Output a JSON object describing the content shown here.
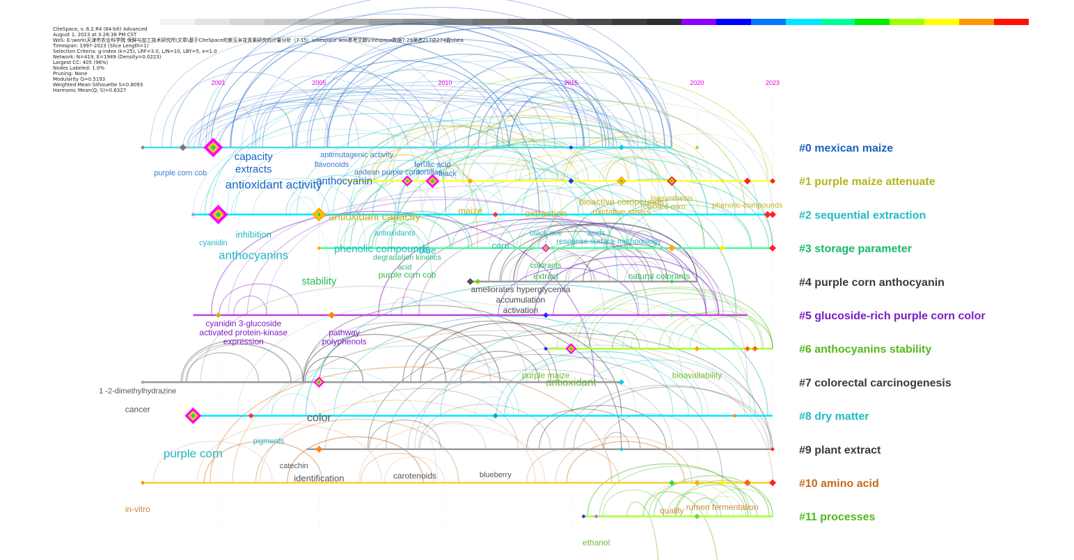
{
  "header_info": [
    "CiteSpace, v. 6.2.R4 (64-bit) Advanced",
    "August 1, 2023 at 3:26:38 PM CST",
    "WoS: E:\\work\\天津市农业科学院 保鲜与加工技术研究所\\文章\\基于CiteSpace的紫玉米花青素研究的计量分析（7.15）\\citespace wos参考文献\\citespace数据7.29筛选217总274篇\\data",
    "Timespan: 1997-2023 (Slice Length=1)",
    "Selection Criteria: g-index (k=25), LRF=3.0, L/N=10, LBY=5, e=1.0",
    "Network: N=419, E=1949 (Density=0.0223)",
    "Largest CC: 405 (96%)",
    "Nodes Labeled: 1.0%",
    "Pruning: None",
    "Modularity Q=0.5193",
    "Weighted Mean Silhouette S=0.8093",
    "Harmonic Mean(Q, S)=0.6327"
  ],
  "colorbar": [
    "#f2f2f2",
    "#e4e4e4",
    "#d6d6d6",
    "#c8c8c8",
    "#bababa",
    "#acacac",
    "#9e9e9e",
    "#909090",
    "#828282",
    "#747474",
    "#666666",
    "#585858",
    "#4a4a4a",
    "#3c3c3c",
    "#2e2e2e",
    "#8a00ff",
    "#0000ff",
    "#0077ff",
    "#00e5ff",
    "#00ff99",
    "#00ee00",
    "#9dff00",
    "#ffff00",
    "#ff9900",
    "#ff1100"
  ],
  "year_ticks": [
    {
      "label": "2001",
      "year": 2001
    },
    {
      "label": "2005",
      "year": 2005
    },
    {
      "label": "2010",
      "year": 2010
    },
    {
      "label": "2015",
      "year": 2015
    },
    {
      "label": "2020",
      "year": 2020
    },
    {
      "label": "2023",
      "year": 2023
    }
  ],
  "year_color": "#e000e0",
  "clusters": [
    {
      "id": "#0",
      "name": "#0 mexican maize",
      "color": "#1b62c4",
      "line_color": "#4fd8f0",
      "start": 1998,
      "end": 2019,
      "nodes": [
        {
          "year": 1998,
          "color": "#888888",
          "size": 3
        },
        {
          "year": 1999.6,
          "color": "#777777",
          "size": 5
        },
        {
          "year": 2000.8,
          "color": "#ff00ff",
          "size": 14
        },
        {
          "year": 2015,
          "color": "#2233ee",
          "size": 3
        },
        {
          "year": 2017,
          "color": "#00ccee",
          "size": 4
        },
        {
          "year": 2020,
          "color": "#88ee22",
          "size": 3
        }
      ],
      "labels": [
        {
          "text": "capacity",
          "year": 2002.4,
          "dy": 18,
          "size": 15,
          "color": "#1b62c4"
        },
        {
          "text": "extracts",
          "year": 2002.4,
          "dy": 36,
          "size": 15,
          "color": "#1b62c4"
        },
        {
          "text": "antimutagenic activity",
          "year": 2006.5,
          "dy": 14,
          "size": 11,
          "color": "#3a78d0"
        },
        {
          "text": "flavonoids",
          "year": 2005.5,
          "dy": 28,
          "size": 11,
          "color": "#3a78d0"
        },
        {
          "text": "purple corn cob",
          "year": 1999.5,
          "dy": 40,
          "size": 11,
          "color": "#3a78d0"
        },
        {
          "text": "antioxidant activity",
          "year": 2003.2,
          "dy": 59,
          "size": 17,
          "color": "#1b62c4"
        }
      ]
    },
    {
      "id": "#1",
      "name": "#1 purple maize attenuate",
      "color": "#b5b41a",
      "line_color": "#ffff33",
      "start": 2006,
      "end": 2023,
      "nodes": [
        {
          "year": 2008.5,
          "color": "#ff00ff",
          "size": 8
        },
        {
          "year": 2009.5,
          "color": "#ff00ff",
          "size": 10
        },
        {
          "year": 2011,
          "color": "#ffaa00",
          "size": 4
        },
        {
          "year": 2015,
          "color": "#2233ee",
          "size": 4
        },
        {
          "year": 2017,
          "color": "#ffaa00",
          "size": 7
        },
        {
          "year": 2019,
          "color": "#ff2222",
          "size": 7
        },
        {
          "year": 2021,
          "color": "#ffee00",
          "size": 3
        },
        {
          "year": 2022,
          "color": "#ff2222",
          "size": 5
        },
        {
          "year": 2023,
          "color": "#ff2222",
          "size": 4
        }
      ],
      "labels": [
        {
          "text": "ferulic acid",
          "year": 2009.5,
          "dy": -20,
          "size": 11,
          "color": "#3a78d0"
        },
        {
          "text": "andean purple corn",
          "year": 2007.7,
          "dy": -9,
          "size": 11,
          "color": "#3a78d0"
        },
        {
          "text": "tortillas",
          "year": 2009.4,
          "dy": -9,
          "size": 11,
          "color": "#3a78d0"
        },
        {
          "text": "black",
          "year": 2010.1,
          "dy": -7,
          "size": 11,
          "color": "#3a78d0"
        },
        {
          "text": "anthocyanin",
          "year": 2006,
          "dy": 5,
          "size": 15,
          "color": "#1b62c4"
        }
      ]
    },
    {
      "id": "#2",
      "name": "#2 sequential extraction",
      "color": "#1fbcc4",
      "line_color": "#00e5ff",
      "start": 2000,
      "end": 2023,
      "nodes": [
        {
          "year": 2000,
          "color": "#bb88ff",
          "size": 3
        },
        {
          "year": 2001,
          "color": "#ff00ff",
          "size": 14
        },
        {
          "year": 2005,
          "color": "#ffaa00",
          "size": 10
        },
        {
          "year": 2012,
          "color": "#ff3333",
          "size": 4
        },
        {
          "year": 2022.8,
          "color": "#ff2222",
          "size": 5
        },
        {
          "year": 2023,
          "color": "#ff2222",
          "size": 5
        }
      ],
      "labels": [
        {
          "text": "antioxidant capacity",
          "year": 2007.2,
          "dy": 8,
          "size": 15,
          "color": "#c8b020"
        },
        {
          "text": "maize",
          "year": 2011,
          "dy": -1,
          "size": 13,
          "color": "#c8b020"
        },
        {
          "text": "extraction",
          "year": 2014,
          "dy": 3,
          "size": 14,
          "color": "#c8b020"
        },
        {
          "text": "bioactive compounds",
          "year": 2017,
          "dy": -14,
          "size": 13,
          "color": "#c8b020"
        },
        {
          "text": "oxidative stress",
          "year": 2017,
          "dy": 0,
          "size": 12,
          "color": "#c8b020"
        },
        {
          "text": "biosynthesis",
          "year": 2019,
          "dy": -20,
          "size": 11,
          "color": "#c8b020"
        },
        {
          "text": "colored corn",
          "year": 2018.7,
          "dy": -8,
          "size": 11,
          "color": "#c8b020"
        },
        {
          "text": "phenolic-compounds",
          "year": 2022,
          "dy": -10,
          "size": 11,
          "color": "#c8b020"
        },
        {
          "text": "inhibition",
          "year": 2002.4,
          "dy": 33,
          "size": 13,
          "color": "#22b7c4"
        },
        {
          "text": "antioxidants",
          "year": 2008,
          "dy": 30,
          "size": 11,
          "color": "#22b7c4"
        }
      ]
    },
    {
      "id": "#3",
      "name": "#3 storage parameter",
      "color": "#18b86c",
      "line_color": "#40ff9b",
      "start": 2005,
      "end": 2023,
      "nodes": [
        {
          "year": 2005,
          "color": "#ffaa00",
          "size": 3
        },
        {
          "year": 2014,
          "color": "#ff00ff",
          "size": 6
        },
        {
          "year": 2019,
          "color": "#ffaa00",
          "size": 5
        },
        {
          "year": 2021,
          "color": "#ffee00",
          "size": 4
        },
        {
          "year": 2023,
          "color": "#ff2222",
          "size": 5
        }
      ],
      "labels": [
        {
          "text": "cyanidin",
          "year": 2000.8,
          "dy": -4,
          "size": 11,
          "color": "#22b7c4"
        },
        {
          "text": "anthocyanins",
          "year": 2002.4,
          "dy": 16,
          "size": 17,
          "color": "#22b7c4"
        },
        {
          "text": "phenolic compounds",
          "year": 2007.5,
          "dy": 6,
          "size": 15,
          "color": "#22b7c4"
        },
        {
          "text": "blue",
          "year": 2009.3,
          "dy": 8,
          "size": 13,
          "color": "#22b7c4"
        },
        {
          "text": "black rice",
          "year": 2014,
          "dy": -18,
          "size": 11,
          "color": "#22b7c4"
        },
        {
          "text": "acids",
          "year": 2016,
          "dy": -18,
          "size": 11,
          "color": "#22b7c4"
        },
        {
          "text": "response surface methodology",
          "year": 2016.5,
          "dy": -6,
          "size": 11,
          "color": "#22b7c4"
        },
        {
          "text": "corn",
          "year": 2012.2,
          "dy": 1,
          "size": 13,
          "color": "#22b7c4"
        },
        {
          "text": "degradation kinetics",
          "year": 2008.5,
          "dy": 17,
          "size": 11,
          "color": "#2cba7a"
        },
        {
          "text": "acid",
          "year": 2008.4,
          "dy": 31,
          "size": 11,
          "color": "#2cba7a"
        }
      ]
    },
    {
      "id": "#4",
      "name": "#4 purple corn anthocyanin",
      "color": "#3a3a3a",
      "line_color": "#9a9a9a",
      "start": 2011,
      "end": 2020,
      "nodes": [
        {
          "year": 2011,
          "color": "#555555",
          "size": 5
        },
        {
          "year": 2011.3,
          "color": "#77cc22",
          "size": 4
        },
        {
          "year": 2019,
          "color": "#22dd44",
          "size": 3
        }
      ],
      "labels": [
        {
          "text": "stability",
          "year": 2005,
          "dy": 4,
          "size": 15,
          "color": "#2cba4e"
        },
        {
          "text": "purple corn cob",
          "year": 2008.5,
          "dy": -6,
          "size": 12,
          "color": "#2cba4e"
        },
        {
          "text": "colorants",
          "year": 2014,
          "dy": -20,
          "size": 11,
          "color": "#2cba4e"
        },
        {
          "text": "extract",
          "year": 2014,
          "dy": -4,
          "size": 12,
          "color": "#2cba4e"
        },
        {
          "text": "natural colorants",
          "year": 2018.5,
          "dy": -4,
          "size": 12,
          "color": "#2cba4e"
        },
        {
          "text": "ameliorates hyperglycemia",
          "year": 2013,
          "dy": 15,
          "size": 12,
          "color": "#4a4a4a"
        },
        {
          "text": "accumulation",
          "year": 2013,
          "dy": 30,
          "size": 12,
          "color": "#4a4a4a"
        },
        {
          "text": "activation",
          "year": 2013,
          "dy": 45,
          "size": 12,
          "color": "#4a4a4a"
        }
      ]
    },
    {
      "id": "#5",
      "name": "#5 glucoside-rich purple corn color",
      "color": "#7d1bc4",
      "line_color": "#c040e0",
      "start": 2000,
      "end": 2022,
      "nodes": [
        {
          "year": 2001,
          "color": "#bbbb00",
          "size": 4
        },
        {
          "year": 2005.5,
          "color": "#ff8800",
          "size": 5
        },
        {
          "year": 2014,
          "color": "#3322ff",
          "size": 4
        },
        {
          "year": 2019,
          "color": "#22dd44",
          "size": 3
        }
      ],
      "labels": [
        {
          "text": "cyanidin 3-glucoside",
          "year": 2002,
          "dy": 16,
          "size": 12,
          "color": "#7d1bc4"
        },
        {
          "text": "activated protein-kinase",
          "year": 2002,
          "dy": 29,
          "size": 12,
          "color": "#7d1bc4"
        },
        {
          "text": "expression",
          "year": 2002,
          "dy": 42,
          "size": 12,
          "color": "#7d1bc4"
        },
        {
          "text": "pathway",
          "year": 2006,
          "dy": 29,
          "size": 12,
          "color": "#7d1bc4"
        },
        {
          "text": "polyphenols",
          "year": 2006,
          "dy": 42,
          "size": 12,
          "color": "#7d1bc4"
        }
      ]
    },
    {
      "id": "#6",
      "name": "#6 anthocyanins stability",
      "color": "#54b81c",
      "line_color": "#a6ff33",
      "start": 2014,
      "end": 2023,
      "nodes": [
        {
          "year": 2014,
          "color": "#3322ff",
          "size": 3
        },
        {
          "year": 2015,
          "color": "#ff00ff",
          "size": 8
        },
        {
          "year": 2020,
          "color": "#ffaa00",
          "size": 4
        },
        {
          "year": 2022,
          "color": "#ff6600",
          "size": 4
        },
        {
          "year": 2022.3,
          "color": "#ff6600",
          "size": 4
        }
      ],
      "labels": []
    },
    {
      "id": "#7",
      "name": "#7 colorectal carcinogenesis",
      "color": "#3a3a3a",
      "line_color": "#9a9a9a",
      "start": 1998,
      "end": 2017,
      "nodes": [
        {
          "year": 1998,
          "color": "#aaaaaa",
          "size": 3
        },
        {
          "year": 2005,
          "color": "#ff00ff",
          "size": 8
        },
        {
          "year": 2017,
          "color": "#00ccee",
          "size": 4
        }
      ],
      "labels": [
        {
          "text": "1 -2-dimethylhydrazine",
          "year": 1997.8,
          "dy": 16,
          "size": 11,
          "color": "#555555"
        },
        {
          "text": "purple maize",
          "year": 2014,
          "dy": -6,
          "size": 12,
          "color": "#6fb830"
        },
        {
          "text": "antioxidant",
          "year": 2015,
          "dy": 5,
          "size": 15,
          "color": "#6fb830"
        },
        {
          "text": "bioavailability",
          "year": 2020,
          "dy": -6,
          "size": 12,
          "color": "#6fb830"
        }
      ]
    },
    {
      "id": "#8",
      "name": "#8 dry matter",
      "color": "#1fbcc4",
      "line_color": "#00e5ff",
      "start": 2000,
      "end": 2023,
      "nodes": [
        {
          "year": 2000,
          "color": "#ff00ff",
          "size": 12
        },
        {
          "year": 2002.3,
          "color": "#ff3333",
          "size": 4
        },
        {
          "year": 2012,
          "color": "#00aacc",
          "size": 4
        },
        {
          "year": 2021.5,
          "color": "#ff8800",
          "size": 3
        }
      ],
      "labels": [
        {
          "text": "cancer",
          "year": 1997.8,
          "dy": -5,
          "size": 12,
          "color": "#555555"
        },
        {
          "text": "color",
          "year": 2005,
          "dy": 8,
          "size": 16,
          "color": "#555555"
        },
        {
          "text": "pigments",
          "year": 2003,
          "dy": 40,
          "size": 11,
          "color": "#22b7c4"
        },
        {
          "text": "purple corn",
          "year": 2000,
          "dy": 60,
          "size": 17,
          "color": "#22b7c4"
        }
      ]
    },
    {
      "id": "#9",
      "name": "#9 plant extract",
      "color": "#3a3a3a",
      "line_color": "#9a9a9a",
      "start": 2004.5,
      "end": 2023,
      "nodes": [
        {
          "year": 2005,
          "color": "#ff8800",
          "size": 5
        },
        {
          "year": 2017,
          "color": "#00ccee",
          "size": 3
        },
        {
          "year": 2023,
          "color": "#ff2222",
          "size": 3
        }
      ],
      "labels": [
        {
          "text": "catechin",
          "year": 2004,
          "dy": 27,
          "size": 11,
          "color": "#555555"
        },
        {
          "text": "identification",
          "year": 2005,
          "dy": 46,
          "size": 13,
          "color": "#555555"
        },
        {
          "text": "carotenoids",
          "year": 2008.8,
          "dy": 42,
          "size": 12,
          "color": "#555555"
        },
        {
          "text": "blueberry",
          "year": 2012,
          "dy": 40,
          "size": 11,
          "color": "#555555"
        }
      ]
    },
    {
      "id": "#10",
      "name": "#10 amino acid",
      "color": "#c46a1b",
      "line_color": "#ffcc33",
      "start": 1998,
      "end": 2023,
      "nodes": [
        {
          "year": 1998,
          "color": "#ff8800",
          "size": 3
        },
        {
          "year": 2019,
          "color": "#22dd44",
          "size": 4
        },
        {
          "year": 2020,
          "color": "#ffaa00",
          "size": 4
        },
        {
          "year": 2021,
          "color": "#ffee00",
          "size": 4
        },
        {
          "year": 2022,
          "color": "#ff6600",
          "size": 5
        },
        {
          "year": 2023,
          "color": "#ff2222",
          "size": 5
        }
      ],
      "labels": [
        {
          "text": "in-vitro",
          "year": 1997.8,
          "dy": 42,
          "size": 12,
          "color": "#c88a40"
        }
      ]
    },
    {
      "id": "#11",
      "name": "#11 processes",
      "color": "#54b81c",
      "line_color": "#a6ff33",
      "start": 2015.5,
      "end": 2023,
      "nodes": [
        {
          "year": 2015.5,
          "color": "#2233ee",
          "size": 3
        },
        {
          "year": 2016,
          "color": "#bb66ff",
          "size": 3
        },
        {
          "year": 2020,
          "color": "#66dd22",
          "size": 4
        }
      ],
      "labels": [
        {
          "text": "quality",
          "year": 2019,
          "dy": -4,
          "size": 12,
          "color": "#c88a40"
        },
        {
          "text": "rumen fermentation",
          "year": 2021,
          "dy": -9,
          "size": 12,
          "color": "#c88a40"
        },
        {
          "text": "ethanol",
          "year": 2016,
          "dy": 42,
          "size": 12,
          "color": "#6fb830"
        }
      ]
    }
  ]
}
